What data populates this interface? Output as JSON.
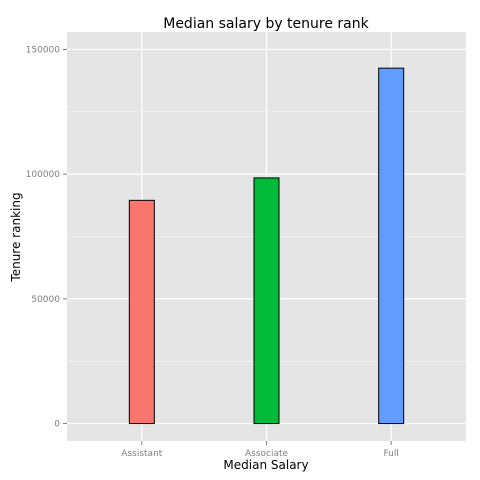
{
  "chart_data": {
    "type": "bar",
    "title": "Median salary by tenure rank",
    "xlabel": "Median Salary",
    "ylabel": "Tenure ranking",
    "categories": [
      "Assistant",
      "Associate",
      "Full"
    ],
    "values": [
      89500,
      98500,
      142500
    ],
    "colors": [
      "#F8766D",
      "#00BA38",
      "#619CFF"
    ],
    "ylim": [
      -7000,
      157000
    ],
    "yticks": [
      0,
      50000,
      100000,
      150000
    ],
    "ytick_labels": [
      "0",
      "50000",
      "100000",
      "150000"
    ],
    "panel_background": "#E5E5E5",
    "grid": true,
    "legend": "none"
  }
}
